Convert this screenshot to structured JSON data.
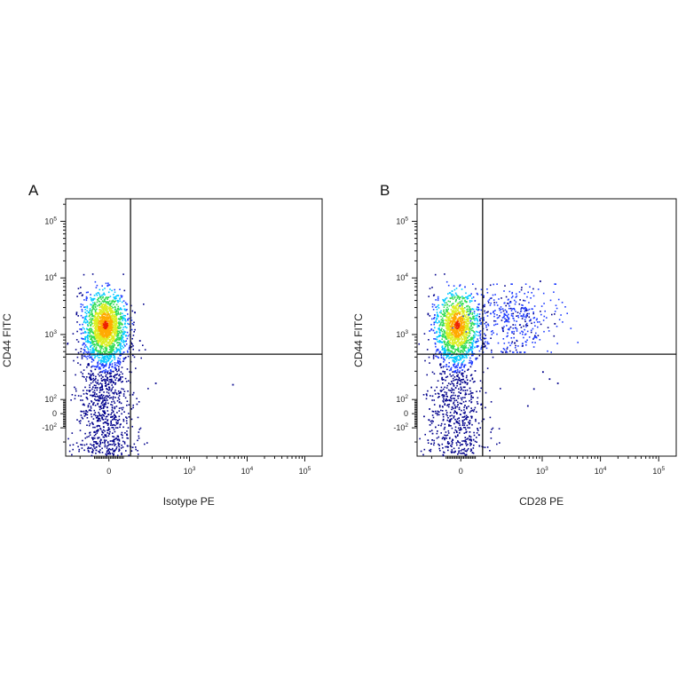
{
  "chart_data": [
    {
      "type": "scatter",
      "panel_label": "A",
      "xlabel": "Isotype PE",
      "ylabel": "CD44 FITC",
      "x_scale": "biexponential",
      "y_scale": "biexponential",
      "x_ticks": [
        {
          "base": "0",
          "exp": ""
        },
        {
          "base": "10",
          "exp": "3"
        },
        {
          "base": "10",
          "exp": "4"
        },
        {
          "base": "10",
          "exp": "5"
        }
      ],
      "y_ticks": [
        {
          "base": "10",
          "exp": "5"
        },
        {
          "base": "10",
          "exp": "4"
        },
        {
          "base": "10",
          "exp": "3"
        },
        {
          "base": "10",
          "exp": "2"
        },
        {
          "base": "0",
          "exp": ""
        },
        {
          "base": "-10",
          "exp": "2"
        }
      ],
      "quadrant_gate": {
        "x": 150,
        "y": 450
      },
      "color_scale": [
        "#00008b",
        "#1e3cff",
        "#00c8ff",
        "#33dd55",
        "#ddee22",
        "#ffaa00",
        "#ee2200"
      ],
      "clusters": [
        {
          "x_center": -30,
          "y_min": -300,
          "y_max": 12000,
          "y_peak": 1500,
          "fraction": 1.0
        }
      ],
      "outliers": [
        {
          "x": 210,
          "y": 800
        },
        {
          "x": 320,
          "y": 220
        },
        {
          "x": 5500,
          "y": 210
        },
        {
          "x": 160,
          "y": 140
        }
      ]
    },
    {
      "type": "scatter",
      "panel_label": "B",
      "xlabel": "CD28 PE",
      "ylabel": "CD44 FITC",
      "x_scale": "biexponential",
      "y_scale": "biexponential",
      "x_ticks": [
        {
          "base": "0",
          "exp": ""
        },
        {
          "base": "10",
          "exp": "3"
        },
        {
          "base": "10",
          "exp": "4"
        },
        {
          "base": "10",
          "exp": "5"
        }
      ],
      "y_ticks": [
        {
          "base": "10",
          "exp": "5"
        },
        {
          "base": "10",
          "exp": "4"
        },
        {
          "base": "10",
          "exp": "3"
        },
        {
          "base": "10",
          "exp": "2"
        },
        {
          "base": "0",
          "exp": ""
        },
        {
          "base": "-10",
          "exp": "2"
        }
      ],
      "quadrant_gate": {
        "x": 150,
        "y": 450
      },
      "color_scale": [
        "#00008b",
        "#1e3cff",
        "#00c8ff",
        "#33dd55",
        "#ddee22",
        "#ffaa00",
        "#ee2200"
      ],
      "clusters": [
        {
          "x_center": -30,
          "y_min": -300,
          "y_max": 12000,
          "y_peak": 1500,
          "fraction": 0.85
        },
        {
          "x_center": 300,
          "y_min": 500,
          "y_max": 8000,
          "y_peak": 2000,
          "fraction": 0.15
        }
      ],
      "outliers": [
        {
          "x": 900,
          "y": 9000
        },
        {
          "x": 1600,
          "y": 1600
        },
        {
          "x": 1000,
          "y": 300
        },
        {
          "x": 1800,
          "y": 220
        },
        {
          "x": 1300,
          "y": 250
        },
        {
          "x": 550,
          "y": 60
        },
        {
          "x": 700,
          "y": 180
        }
      ]
    }
  ]
}
